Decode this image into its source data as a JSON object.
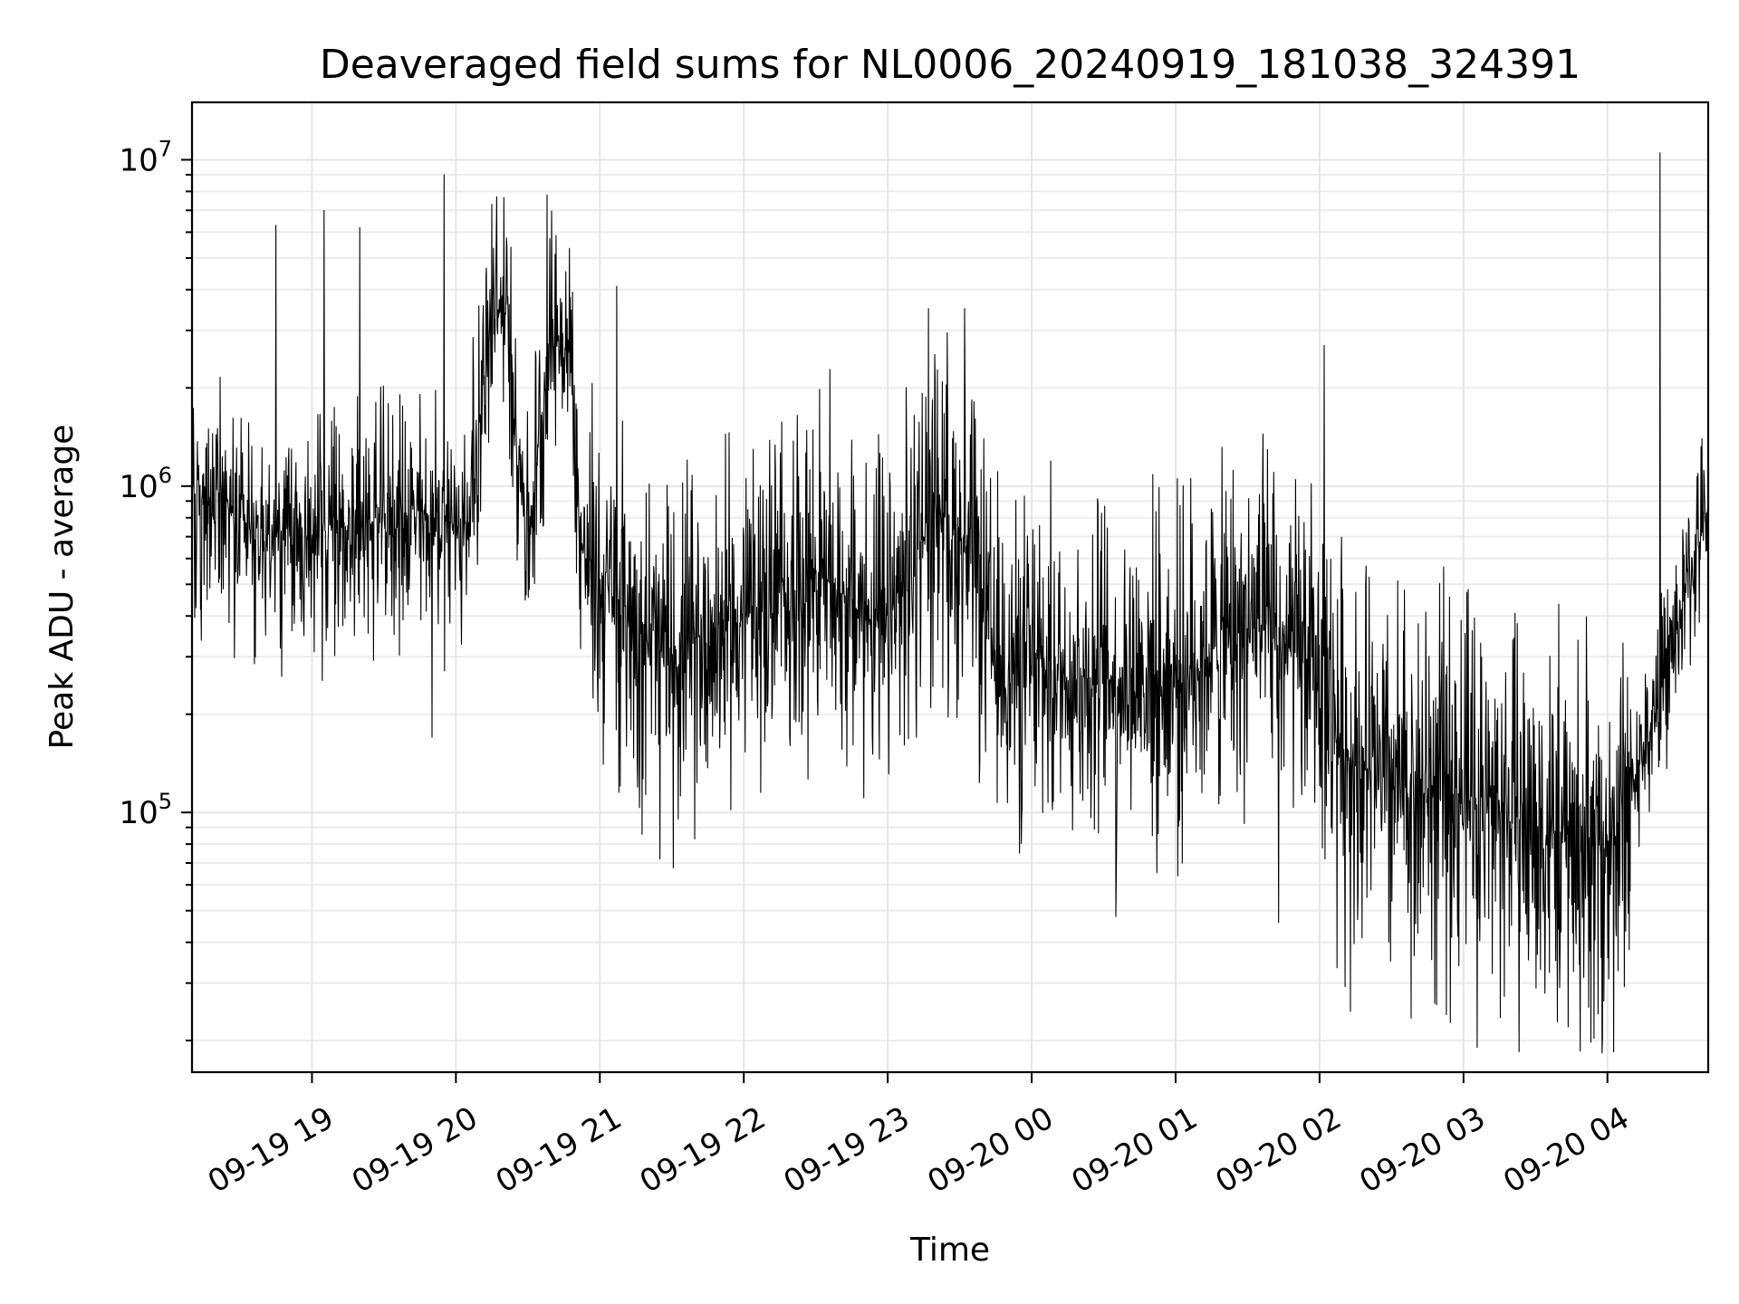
{
  "chart_data": {
    "type": "line",
    "title": "Deaveraged field sums for NL0006_20240919_181038_324391",
    "xlabel": "Time",
    "ylabel": "Peak ADU - average",
    "yscale": "log",
    "grid": true,
    "xlim": [
      "2024-09-19 18:10",
      "2024-09-20 04:42"
    ],
    "ylim": [
      16000,
      15000000
    ],
    "x_ticks": [
      {
        "value": "2024-09-19 19:00",
        "label": "09-19 19"
      },
      {
        "value": "2024-09-19 20:00",
        "label": "09-19 20"
      },
      {
        "value": "2024-09-19 21:00",
        "label": "09-19 21"
      },
      {
        "value": "2024-09-19 22:00",
        "label": "09-19 22"
      },
      {
        "value": "2024-09-19 23:00",
        "label": "09-19 23"
      },
      {
        "value": "2024-09-20 00:00",
        "label": "09-20 00"
      },
      {
        "value": "2024-09-20 01:00",
        "label": "09-20 01"
      },
      {
        "value": "2024-09-20 02:00",
        "label": "09-20 02"
      },
      {
        "value": "2024-09-20 03:00",
        "label": "09-20 03"
      },
      {
        "value": "2024-09-20 04:00",
        "label": "09-20 04"
      }
    ],
    "y_ticks": [
      {
        "value": 100000,
        "base": "10",
        "exp": "5"
      },
      {
        "value": 1000000,
        "base": "10",
        "exp": "6"
      },
      {
        "value": 10000000,
        "base": "10",
        "exp": "7"
      }
    ],
    "series": [
      {
        "color": "#000000",
        "baseline_points": [
          {
            "x": "2024-09-19 18:10",
            "y": 950000
          },
          {
            "x": "2024-09-19 18:30",
            "y": 800000
          },
          {
            "x": "2024-09-19 18:45",
            "y": 650000
          },
          {
            "x": "2024-09-19 19:15",
            "y": 750000
          },
          {
            "x": "2024-09-19 19:45",
            "y": 800000
          },
          {
            "x": "2024-09-19 20:05",
            "y": 750000
          },
          {
            "x": "2024-09-19 20:12",
            "y": 2300000
          },
          {
            "x": "2024-09-19 20:20",
            "y": 3800000
          },
          {
            "x": "2024-09-19 20:30",
            "y": 700000
          },
          {
            "x": "2024-09-19 20:40",
            "y": 3000000
          },
          {
            "x": "2024-09-19 20:48",
            "y": 2500000
          },
          {
            "x": "2024-09-19 20:52",
            "y": 650000
          },
          {
            "x": "2024-09-19 21:00",
            "y": 500000
          },
          {
            "x": "2024-09-19 21:30",
            "y": 300000
          },
          {
            "x": "2024-09-19 22:00",
            "y": 400000
          },
          {
            "x": "2024-09-19 22:30",
            "y": 550000
          },
          {
            "x": "2024-09-19 23:00",
            "y": 350000
          },
          {
            "x": "2024-09-19 23:20",
            "y": 900000
          },
          {
            "x": "2024-09-19 23:35",
            "y": 600000
          },
          {
            "x": "2024-09-19 23:45",
            "y": 280000
          },
          {
            "x": "2024-09-20 00:30",
            "y": 260000
          },
          {
            "x": "2024-09-20 01:00",
            "y": 260000
          },
          {
            "x": "2024-09-20 01:30",
            "y": 380000
          },
          {
            "x": "2024-09-20 02:00",
            "y": 280000
          },
          {
            "x": "2024-09-20 02:10",
            "y": 150000
          },
          {
            "x": "2024-09-20 02:30",
            "y": 120000
          },
          {
            "x": "2024-09-20 03:00",
            "y": 115000
          },
          {
            "x": "2024-09-20 03:30",
            "y": 90000
          },
          {
            "x": "2024-09-20 04:00",
            "y": 75000
          },
          {
            "x": "2024-09-20 04:15",
            "y": 150000
          },
          {
            "x": "2024-09-20 04:25",
            "y": 280000
          },
          {
            "x": "2024-09-20 04:35",
            "y": 550000
          },
          {
            "x": "2024-09-20 04:42",
            "y": 850000
          }
        ],
        "notable_peaks": [
          {
            "x": "2024-09-19 18:45",
            "y": 6300000
          },
          {
            "x": "2024-09-19 19:05",
            "y": 7000000
          },
          {
            "x": "2024-09-19 19:20",
            "y": 6200000
          },
          {
            "x": "2024-09-19 19:55",
            "y": 9000000
          },
          {
            "x": "2024-09-19 20:15",
            "y": 7300000
          },
          {
            "x": "2024-09-19 20:38",
            "y": 7800000
          },
          {
            "x": "2024-09-19 21:07",
            "y": 4100000
          },
          {
            "x": "2024-09-19 23:17",
            "y": 3500000
          },
          {
            "x": "2024-09-19 23:32",
            "y": 3500000
          },
          {
            "x": "2024-09-20 02:02",
            "y": 2700000
          },
          {
            "x": "2024-09-20 04:22",
            "y": 10500000
          }
        ],
        "notable_troughs": [
          {
            "x": "2024-09-19 19:50",
            "y": 170000
          },
          {
            "x": "2024-09-19 21:25",
            "y": 72000
          },
          {
            "x": "2024-09-20 00:35",
            "y": 48000
          },
          {
            "x": "2024-09-20 01:43",
            "y": 46000
          },
          {
            "x": "2024-09-20 02:48",
            "y": 26000
          },
          {
            "x": "2024-09-20 03:58",
            "y": 20500
          }
        ]
      }
    ]
  }
}
